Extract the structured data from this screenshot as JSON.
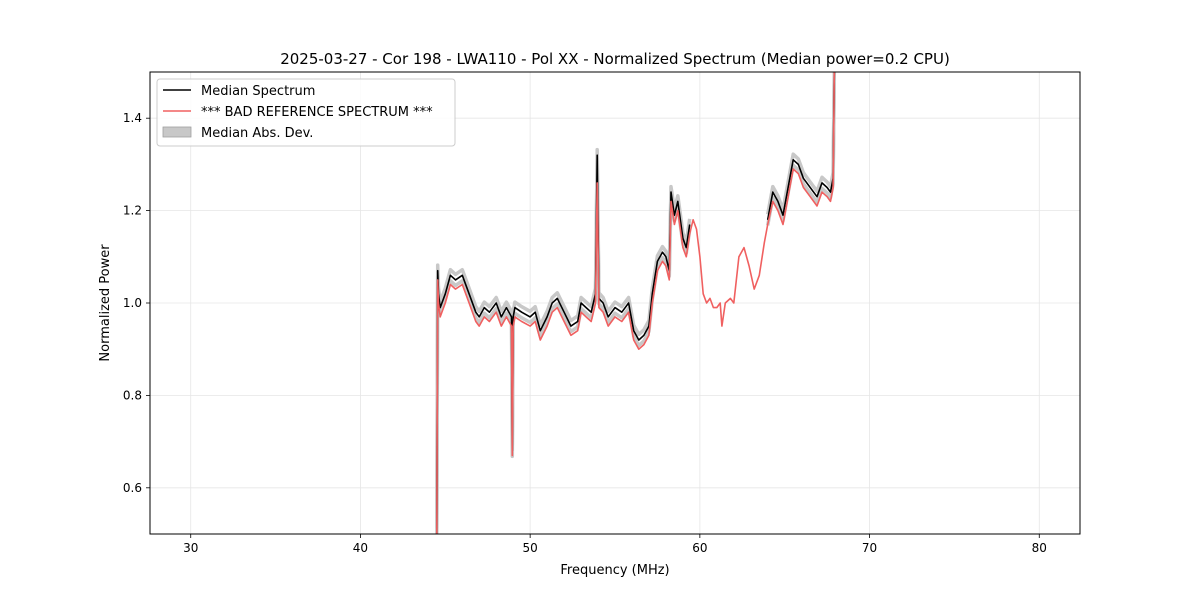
{
  "chart_data": {
    "type": "line",
    "title": "2025-03-27 - Cor 198 - LWA110 - Pol XX - Normalized Spectrum (Median power=0.2 CPU)",
    "xlabel": "Frequency (MHz)",
    "ylabel": "Normalized Power",
    "xlim": [
      27.6,
      82.4
    ],
    "ylim": [
      0.5,
      1.5
    ],
    "xticks": [
      30,
      40,
      50,
      60,
      70,
      80
    ],
    "xtick_labels": [
      "30",
      "40",
      "50",
      "60",
      "70",
      "80"
    ],
    "yticks": [
      0.6,
      0.8,
      1.0,
      1.2,
      1.4
    ],
    "ytick_labels": [
      "0.6",
      "0.8",
      "1.0",
      "1.2",
      "1.4"
    ],
    "grid": true,
    "legend_position": "top-left",
    "legend": [
      {
        "label": "Median Spectrum",
        "kind": "line",
        "color": "#000000"
      },
      {
        "label": "*** BAD REFERENCE SPECTRUM ***",
        "kind": "line",
        "color": "#f06060"
      },
      {
        "label": "Median Abs. Dev.",
        "kind": "patch",
        "color": "#c8c8c8"
      }
    ],
    "series": [
      {
        "name": "*** BAD REFERENCE SPECTRUM ***",
        "color": "#f06060",
        "x": [
          44.5,
          44.55,
          44.6,
          44.7,
          45.0,
          45.3,
          45.6,
          46.0,
          46.4,
          46.8,
          47.0,
          47.3,
          47.6,
          48.0,
          48.3,
          48.6,
          48.9,
          48.95,
          49.0,
          49.1,
          49.5,
          50.0,
          50.3,
          50.6,
          51.0,
          51.3,
          51.6,
          52.0,
          52.4,
          52.8,
          53.0,
          53.3,
          53.6,
          53.85,
          53.95,
          54.05,
          54.3,
          54.6,
          55.0,
          55.4,
          55.8,
          56.1,
          56.4,
          56.7,
          57.0,
          57.2,
          57.5,
          57.8,
          58.0,
          58.2,
          58.3,
          58.5,
          58.7,
          59.0,
          59.2,
          59.4,
          59.6,
          59.8,
          60.0,
          60.2,
          60.4,
          60.6,
          60.8,
          61.0,
          61.2,
          61.3,
          61.5,
          61.8,
          62.0,
          62.3,
          62.6,
          62.9,
          63.2,
          63.5,
          63.8,
          64.0,
          64.3,
          64.6,
          64.9,
          65.2,
          65.5,
          65.8,
          66.1,
          66.5,
          66.9,
          67.2,
          67.5,
          67.7,
          67.85,
          67.92
        ],
        "y": [
          0.5,
          1.05,
          1.0,
          0.97,
          1.0,
          1.04,
          1.03,
          1.04,
          1.0,
          0.96,
          0.95,
          0.97,
          0.96,
          0.98,
          0.95,
          0.97,
          0.95,
          0.67,
          0.95,
          0.97,
          0.96,
          0.95,
          0.96,
          0.92,
          0.95,
          0.98,
          0.99,
          0.96,
          0.93,
          0.94,
          0.98,
          0.97,
          0.96,
          1.0,
          1.26,
          0.99,
          0.98,
          0.95,
          0.97,
          0.96,
          0.98,
          0.92,
          0.9,
          0.91,
          0.93,
          1.0,
          1.07,
          1.09,
          1.08,
          1.05,
          1.22,
          1.17,
          1.2,
          1.12,
          1.1,
          1.15,
          1.18,
          1.16,
          1.1,
          1.02,
          1.0,
          1.01,
          0.99,
          0.99,
          1.0,
          0.95,
          1.0,
          1.01,
          1.0,
          1.1,
          1.12,
          1.08,
          1.03,
          1.06,
          1.13,
          1.17,
          1.22,
          1.2,
          1.17,
          1.23,
          1.29,
          1.28,
          1.25,
          1.23,
          1.21,
          1.24,
          1.23,
          1.22,
          1.25,
          1.5
        ]
      },
      {
        "name": "Median Spectrum",
        "color": "#000000",
        "x": [
          44.5,
          44.55,
          44.6,
          44.7,
          45.0,
          45.3,
          45.6,
          46.0,
          46.4,
          46.8,
          47.0,
          47.3,
          47.6,
          48.0,
          48.3,
          48.6,
          48.9,
          48.95,
          49.0,
          49.1,
          49.5,
          50.0,
          50.3,
          50.6,
          51.0,
          51.3,
          51.6,
          52.0,
          52.4,
          52.8,
          53.0,
          53.3,
          53.6,
          53.85,
          53.95,
          54.05,
          54.3,
          54.6,
          55.0,
          55.4,
          55.8,
          56.1,
          56.4,
          56.7,
          57.0,
          57.2,
          57.5,
          57.8,
          58.0,
          58.2,
          58.3,
          58.5,
          58.7,
          59.0,
          59.2,
          59.4,
          null,
          64.0,
          64.3,
          64.6,
          64.9,
          65.2,
          65.5,
          65.8,
          66.1,
          66.5,
          66.9,
          67.2,
          67.5,
          67.7,
          67.85,
          67.92
        ],
        "y": [
          0.5,
          1.07,
          1.02,
          0.99,
          1.02,
          1.06,
          1.05,
          1.06,
          1.02,
          0.98,
          0.97,
          0.99,
          0.98,
          1.0,
          0.97,
          0.99,
          0.97,
          0.68,
          0.97,
          0.99,
          0.98,
          0.97,
          0.98,
          0.94,
          0.97,
          1.0,
          1.01,
          0.98,
          0.95,
          0.96,
          1.0,
          0.99,
          0.98,
          1.02,
          1.32,
          1.01,
          1.0,
          0.97,
          0.99,
          0.98,
          1.0,
          0.94,
          0.92,
          0.93,
          0.95,
          1.02,
          1.09,
          1.11,
          1.1,
          1.07,
          1.24,
          1.19,
          1.22,
          1.14,
          1.12,
          1.17,
          null,
          1.18,
          1.24,
          1.22,
          1.19,
          1.25,
          1.31,
          1.3,
          1.27,
          1.25,
          1.23,
          1.26,
          1.25,
          1.24,
          1.27,
          1.5
        ]
      }
    ]
  }
}
